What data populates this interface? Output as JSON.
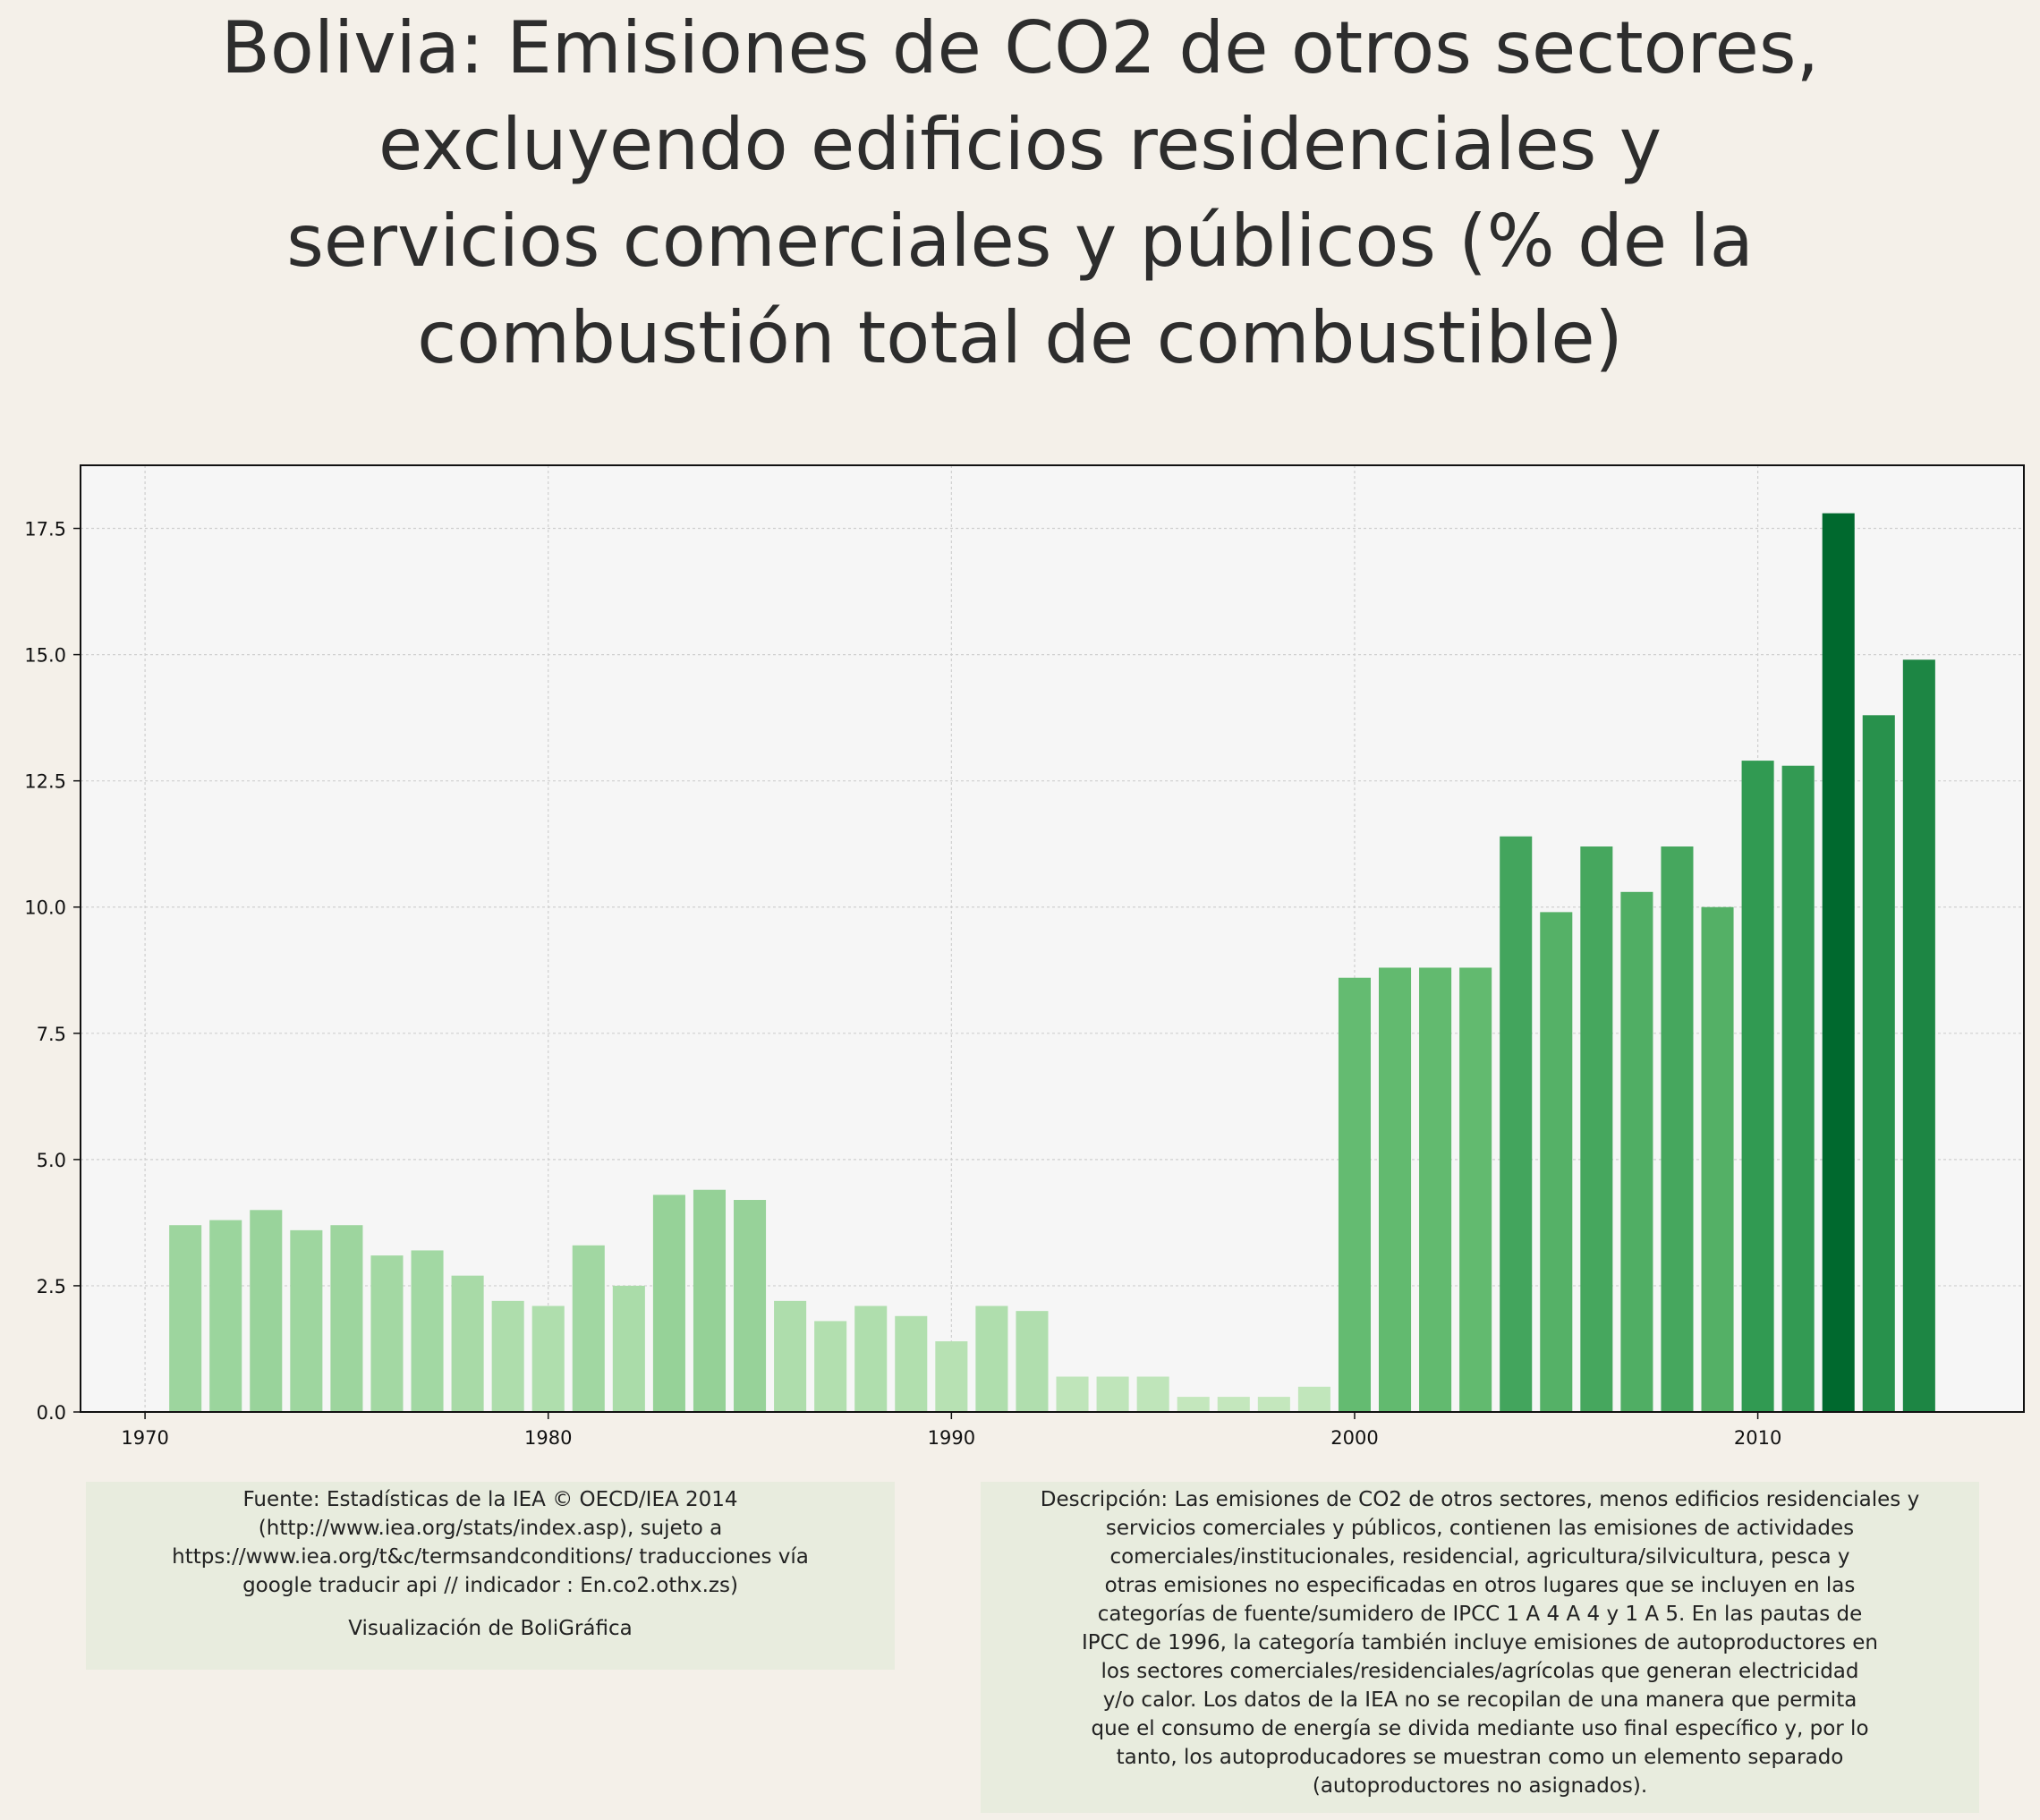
{
  "title_lines": [
    "Bolivia:  Emisiones de CO2 de otros sectores,",
    "excluyendo edificios residenciales y",
    "servicios comerciales y públicos (% de la",
    "combustión total de combustible)"
  ],
  "chart_data": {
    "type": "bar",
    "title": "Bolivia:  Emisiones de CO2 de otros sectores, excluyendo edificios residenciales y servicios comerciales y públicos (% de la combustión total de combustible)",
    "xlabel": "",
    "ylabel": "",
    "x": [
      1971,
      1972,
      1973,
      1974,
      1975,
      1976,
      1977,
      1978,
      1979,
      1980,
      1981,
      1982,
      1983,
      1984,
      1985,
      1986,
      1987,
      1988,
      1989,
      1990,
      1991,
      1992,
      1993,
      1994,
      1995,
      1996,
      1997,
      1998,
      1999,
      2000,
      2001,
      2002,
      2003,
      2004,
      2005,
      2006,
      2007,
      2008,
      2009,
      2010,
      2011,
      2012,
      2013,
      2014
    ],
    "values": [
      3.7,
      3.8,
      4.0,
      3.6,
      3.7,
      3.1,
      3.2,
      2.7,
      2.2,
      2.1,
      3.3,
      2.5,
      4.3,
      4.4,
      4.2,
      2.2,
      1.8,
      2.1,
      1.9,
      1.4,
      2.1,
      2.0,
      0.7,
      0.7,
      0.7,
      0.3,
      0.3,
      0.3,
      0.5,
      8.6,
      8.8,
      8.8,
      8.8,
      11.4,
      9.9,
      11.2,
      10.3,
      11.2,
      10.0,
      12.9,
      12.8,
      17.8,
      13.8,
      14.9
    ],
    "xlim": [
      1968.4,
      2016.6
    ],
    "ylim": [
      0,
      18.75
    ],
    "xticks": [
      1970,
      1980,
      1990,
      2000,
      2010
    ],
    "yticks": [
      0.0,
      2.5,
      5.0,
      7.5,
      10.0,
      12.5,
      15.0,
      17.5
    ],
    "ytick_labels": [
      "0.0",
      "2.5",
      "5.0",
      "7.5",
      "10.0",
      "12.5",
      "15.0",
      "17.5"
    ],
    "grid": true,
    "colormap": "Greens (color intensity proportional to value)",
    "colors": {
      "low": "#c7e9c0",
      "mid": "#41ab5d",
      "high": "#00692e"
    }
  },
  "source_lines": [
    "Fuente: Estadísticas de la IEA © OECD/IEA 2014",
    "(http://www.iea.org/stats/index.asp), sujeto a",
    "https://www.iea.org/t&c/termsandconditions/ traducciones vía",
    "google traducir api // indicador : En.co2.othx.zs)"
  ],
  "credit": "Visualización de BoliGráfica",
  "description_lines": [
    "Descripción: Las emisiones de CO2 de otros sectores, menos edificios residenciales y",
    "servicios comerciales y públicos, contienen las emisiones de actividades",
    "comerciales/institucionales, residencial, agricultura/silvicultura, pesca y",
    "otras emisiones no especificadas en otros lugares que se incluyen en las",
    "categorías de fuente/sumidero de IPCC 1 A 4 A 4 y 1 A 5. En las pautas de",
    "IPCC de 1996, la categoría también incluye emisiones de autoproductores en",
    "los sectores comerciales/residenciales/agrícolas que generan electricidad",
    "y/o calor. Los datos de la IEA no se recopilan de una manera que permita",
    "que el consumo de energía se divida mediante uso final específico y, por lo",
    "tanto, los autoproducadores se muestran como un elemento separado",
    "(autoproductores no asignados)."
  ]
}
